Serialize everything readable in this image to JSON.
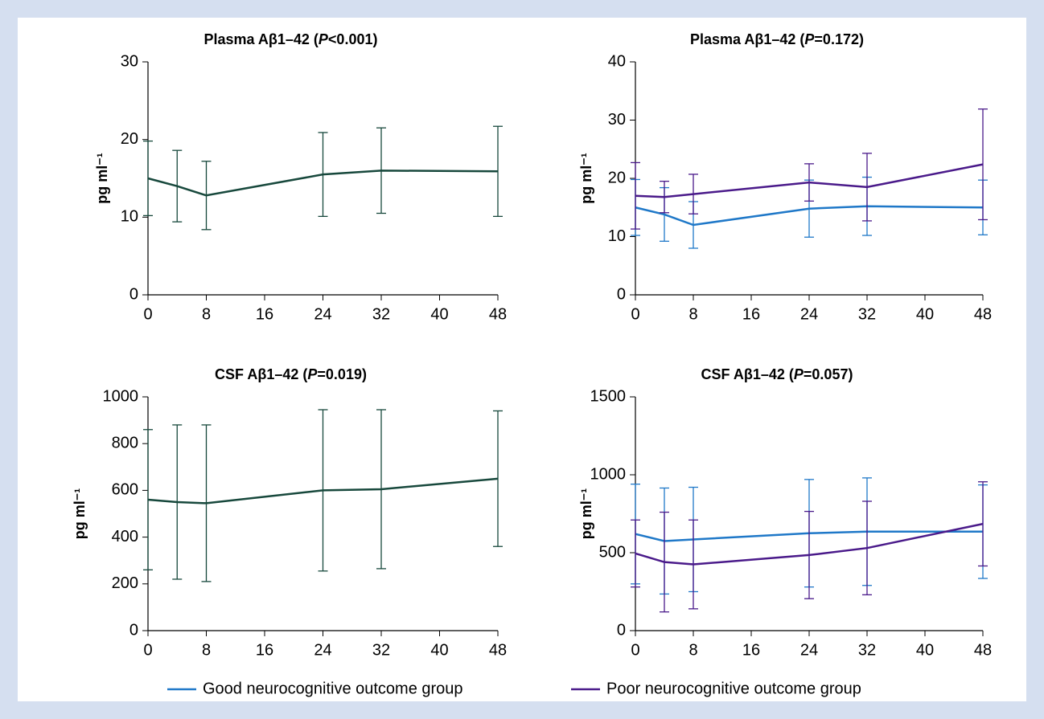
{
  "chart_data": [
    {
      "type": "line",
      "title": "Plasma Aβ1–42 (P<0.001)",
      "y_label": "pg ml⁻¹",
      "x": [
        0,
        4,
        8,
        24,
        32,
        48
      ],
      "xlim": [
        0,
        48
      ],
      "xticks": [
        0,
        8,
        16,
        24,
        32,
        40,
        48
      ],
      "ylim": [
        0,
        30
      ],
      "yticks": [
        0,
        10,
        20,
        30
      ],
      "series": [
        {
          "color": "#17483c",
          "values": [
            15,
            14,
            12.8,
            15.5,
            16,
            15.9
          ],
          "errors": [
            4.8,
            4.6,
            4.4,
            5.4,
            5.5,
            5.8
          ]
        }
      ]
    },
    {
      "type": "line",
      "title": "Plasma Aβ1–42 (P=0.172)",
      "y_label": "pg ml⁻¹",
      "x": [
        0,
        4,
        8,
        24,
        32,
        48
      ],
      "xlim": [
        0,
        48
      ],
      "xticks": [
        0,
        8,
        16,
        24,
        32,
        40,
        48
      ],
      "ylim": [
        0,
        40
      ],
      "yticks": [
        0,
        10,
        20,
        30,
        40
      ],
      "series": [
        {
          "color": "#1f78c8",
          "values": [
            15,
            13.8,
            12,
            14.8,
            15.2,
            15
          ],
          "errors": [
            4.8,
            4.6,
            4,
            4.9,
            5,
            4.7
          ]
        },
        {
          "color": "#4a1a8a",
          "values": [
            17,
            16.8,
            17.3,
            19.3,
            18.5,
            22.4
          ],
          "errors": [
            5.7,
            2.7,
            3.4,
            3.2,
            5.8,
            9.5
          ]
        }
      ]
    },
    {
      "type": "line",
      "title": "CSF Aβ1–42 (P=0.019)",
      "y_label": "pg ml⁻¹",
      "x": [
        0,
        4,
        8,
        24,
        32,
        48
      ],
      "xlim": [
        0,
        48
      ],
      "xticks": [
        0,
        8,
        16,
        24,
        32,
        40,
        48
      ],
      "ylim": [
        0,
        1000
      ],
      "yticks": [
        0,
        200,
        400,
        600,
        800,
        1000
      ],
      "series": [
        {
          "color": "#17483c",
          "values": [
            560,
            550,
            545,
            600,
            605,
            650
          ],
          "errors": [
            300,
            330,
            335,
            345,
            340,
            290
          ]
        }
      ]
    },
    {
      "type": "line",
      "title": "CSF Aβ1–42 (P=0.057)",
      "y_label": "pg ml⁻¹",
      "x": [
        0,
        4,
        8,
        24,
        32,
        48
      ],
      "xlim": [
        0,
        48
      ],
      "xticks": [
        0,
        8,
        16,
        24,
        32,
        40,
        48
      ],
      "ylim": [
        0,
        1500
      ],
      "yticks": [
        0,
        500,
        1000,
        1500
      ],
      "series": [
        {
          "color": "#1f78c8",
          "values": [
            620,
            575,
            585,
            625,
            635,
            635
          ],
          "errors": [
            320,
            340,
            335,
            345,
            345,
            300
          ]
        },
        {
          "color": "#4a1a8a",
          "values": [
            495,
            440,
            425,
            485,
            530,
            685
          ],
          "errors": [
            215,
            320,
            285,
            280,
            300,
            270
          ]
        }
      ]
    }
  ],
  "legend": [
    {
      "name": "Good neurocognitive outcome group",
      "color": "#1f78c8"
    },
    {
      "name": "Poor neurocognitive outcome group",
      "color": "#4a1a8a"
    }
  ]
}
